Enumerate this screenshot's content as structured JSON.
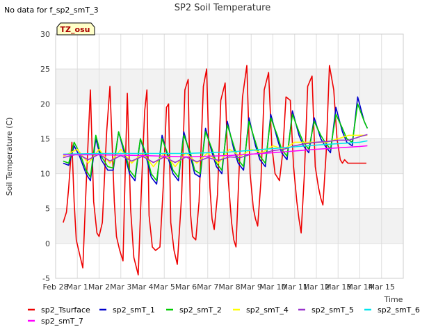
{
  "chart_data": {
    "type": "line",
    "title": "SP2 Soil Temperature",
    "note": "No data for f_sp2_smT_3",
    "badge": "TZ_osu",
    "xlabel": "Time",
    "ylabel": "Soil Temperature (C)",
    "ylim": [
      -5,
      30
    ],
    "xlim": [
      0,
      16
    ],
    "yticks": [
      -5,
      0,
      5,
      10,
      15,
      20,
      25,
      30
    ],
    "xticks": [
      {
        "label": "Feb 28",
        "value": 0
      },
      {
        "label": "Mar 1",
        "value": 1
      },
      {
        "label": "Mar 2",
        "value": 2
      },
      {
        "label": "Mar 3",
        "value": 3
      },
      {
        "label": "Mar 4",
        "value": 4
      },
      {
        "label": "Mar 5",
        "value": 5
      },
      {
        "label": "Mar 6",
        "value": 6
      },
      {
        "label": "Mar 7",
        "value": 7
      },
      {
        "label": "Mar 8",
        "value": 8
      },
      {
        "label": "Mar 9",
        "value": 9
      },
      {
        "label": "Mar 10",
        "value": 10
      },
      {
        "label": "Mar 11",
        "value": 11
      },
      {
        "label": "Mar 12",
        "value": 12
      },
      {
        "label": "Mar 13",
        "value": 13
      },
      {
        "label": "Mar 14",
        "value": 14
      },
      {
        "label": "Mar 15",
        "value": 15
      }
    ],
    "grid": true,
    "legend_position": "bottom",
    "series": [
      {
        "name": "sp2_Tsurface",
        "color": "#ee0000",
        "x": [
          0.35,
          0.5,
          0.6,
          0.75,
          0.85,
          0.95,
          1.1,
          1.25,
          1.4,
          1.5,
          1.6,
          1.75,
          1.9,
          2.0,
          2.15,
          2.35,
          2.5,
          2.7,
          2.8,
          2.95,
          3.1,
          3.2,
          3.3,
          3.45,
          3.6,
          3.8,
          3.95,
          4.1,
          4.2,
          4.3,
          4.45,
          4.6,
          4.8,
          4.95,
          5.1,
          5.2,
          5.3,
          5.45,
          5.6,
          5.8,
          5.95,
          6.1,
          6.2,
          6.3,
          6.45,
          6.6,
          6.8,
          6.95,
          7.1,
          7.2,
          7.3,
          7.45,
          7.6,
          7.8,
          7.95,
          8.1,
          8.2,
          8.3,
          8.45,
          8.6,
          8.8,
          8.95,
          9.1,
          9.2,
          9.3,
          9.45,
          9.6,
          9.8,
          9.95,
          10.1,
          10.2,
          10.3,
          10.45,
          10.6,
          10.8,
          10.95,
          11.1,
          11.2,
          11.3,
          11.45,
          11.6,
          11.8,
          11.95,
          12.1,
          12.2,
          12.3,
          12.45,
          12.6,
          12.8,
          12.95,
          13.1,
          13.2,
          13.3,
          13.45,
          13.6,
          13.8,
          13.95,
          14.1,
          14.2,
          14.3
        ],
        "y": [
          3.0,
          4.5,
          8.0,
          14.5,
          6.0,
          0.5,
          -1.5,
          -3.5,
          8.0,
          15.0,
          22.0,
          6.0,
          1.5,
          1.0,
          3.0,
          16.0,
          22.5,
          6.0,
          1.0,
          -1.0,
          -2.5,
          10.0,
          21.5,
          5.0,
          -2.0,
          -4.5,
          8.0,
          19.0,
          22.0,
          4.0,
          -0.5,
          -1.0,
          -0.5,
          8.0,
          19.5,
          20.0,
          3.0,
          -1.0,
          -3.0,
          7.0,
          22.0,
          23.5,
          4.5,
          1.0,
          0.5,
          6.0,
          22.5,
          25.0,
          8.0,
          3.5,
          2.0,
          7.0,
          20.5,
          23.0,
          9.0,
          3.0,
          0.5,
          -0.5,
          11.0,
          21.0,
          25.5,
          10.0,
          5.0,
          3.5,
          2.5,
          9.0,
          22.0,
          24.5,
          14.0,
          10.0,
          9.5,
          9.0,
          13.0,
          21.0,
          20.5,
          11.0,
          6.0,
          3.5,
          1.5,
          10.0,
          22.5,
          24.0,
          11.0,
          8.0,
          6.5,
          5.5,
          13.0,
          25.5,
          22.0,
          15.0,
          12.0,
          11.5,
          12.0,
          11.5,
          11.5,
          11.5,
          11.5,
          11.5,
          11.5,
          11.5
        ]
      },
      {
        "name": "sp2_smT_1",
        "color": "#0000cc",
        "x": [
          0.35,
          0.6,
          0.85,
          1.1,
          1.4,
          1.6,
          1.85,
          2.1,
          2.4,
          2.65,
          2.9,
          3.2,
          3.4,
          3.65,
          3.9,
          4.2,
          4.4,
          4.65,
          4.9,
          5.2,
          5.4,
          5.65,
          5.9,
          6.2,
          6.4,
          6.65,
          6.9,
          7.2,
          7.4,
          7.65,
          7.9,
          8.2,
          8.4,
          8.65,
          8.9,
          9.2,
          9.4,
          9.65,
          9.9,
          10.2,
          10.4,
          10.65,
          10.9,
          11.2,
          11.4,
          11.65,
          11.9,
          12.2,
          12.4,
          12.65,
          12.9,
          13.2,
          13.4,
          13.65,
          13.9,
          14.2,
          14.35
        ],
        "y": [
          11.5,
          11.2,
          14.0,
          12.5,
          10.0,
          9.0,
          15.0,
          12.0,
          10.5,
          10.5,
          16.0,
          12.5,
          10.0,
          9.0,
          15.0,
          12.0,
          9.5,
          8.5,
          15.5,
          12.0,
          10.0,
          9.0,
          16.0,
          12.5,
          10.0,
          9.5,
          16.5,
          13.0,
          11.0,
          10.0,
          17.5,
          13.5,
          11.5,
          10.5,
          18.0,
          14.0,
          12.0,
          11.0,
          18.5,
          15.0,
          13.0,
          12.0,
          19.0,
          15.5,
          14.0,
          13.0,
          18.0,
          15.0,
          14.0,
          13.0,
          19.5,
          16.0,
          14.5,
          14.0,
          21.0,
          17.5,
          16.5
        ]
      },
      {
        "name": "sp2_smT_2",
        "color": "#00cc00",
        "x": [
          0.35,
          0.6,
          0.85,
          1.1,
          1.4,
          1.6,
          1.85,
          2.1,
          2.4,
          2.65,
          2.9,
          3.2,
          3.4,
          3.65,
          3.9,
          4.2,
          4.4,
          4.65,
          4.9,
          5.2,
          5.4,
          5.65,
          5.9,
          6.2,
          6.4,
          6.65,
          6.9,
          7.2,
          7.4,
          7.65,
          7.9,
          8.2,
          8.4,
          8.65,
          8.9,
          9.2,
          9.4,
          9.65,
          9.9,
          10.2,
          10.4,
          10.65,
          10.9,
          11.2,
          11.4,
          11.65,
          11.9,
          12.2,
          12.4,
          12.65,
          12.9,
          13.2,
          13.4,
          13.65,
          13.9,
          14.2,
          14.35
        ],
        "y": [
          11.8,
          11.5,
          14.5,
          13.0,
          10.5,
          9.5,
          15.5,
          12.5,
          11.0,
          10.8,
          16.0,
          13.0,
          10.5,
          9.5,
          15.0,
          12.5,
          10.0,
          9.0,
          15.0,
          12.5,
          10.5,
          9.5,
          15.5,
          13.0,
          10.5,
          10.0,
          16.0,
          13.5,
          11.5,
          10.5,
          17.0,
          14.0,
          12.0,
          11.0,
          17.5,
          14.5,
          12.5,
          11.5,
          18.0,
          15.5,
          13.5,
          12.5,
          18.5,
          16.0,
          14.5,
          13.5,
          17.5,
          15.5,
          14.5,
          13.5,
          18.5,
          16.5,
          15.0,
          14.5,
          20.0,
          17.5,
          16.5
        ]
      },
      {
        "name": "sp2_smT_4",
        "color": "#ffff00",
        "x": [
          0.35,
          1.0,
          1.5,
          2.0,
          2.5,
          3.0,
          3.5,
          4.0,
          4.5,
          5.0,
          5.5,
          6.0,
          6.5,
          7.0,
          7.5,
          8.0,
          8.5,
          9.0,
          9.5,
          10.0,
          10.5,
          11.0,
          11.5,
          12.0,
          12.5,
          13.0,
          13.5,
          14.0,
          14.35
        ],
        "y": [
          12.5,
          13.5,
          11.5,
          13.5,
          11.5,
          13.5,
          11.5,
          13.0,
          11.0,
          13.0,
          11.0,
          13.0,
          11.5,
          13.0,
          11.5,
          13.5,
          12.5,
          13.5,
          13.0,
          14.0,
          13.5,
          14.5,
          14.5,
          14.5,
          14.5,
          15.0,
          15.5,
          15.5,
          15.5
        ]
      },
      {
        "name": "sp2_smT_5",
        "color": "#9933cc",
        "x": [
          0.35,
          1.0,
          1.5,
          2.0,
          2.5,
          3.0,
          3.5,
          4.0,
          4.5,
          5.0,
          5.5,
          6.0,
          6.5,
          7.0,
          7.5,
          8.0,
          8.5,
          9.0,
          9.5,
          10.0,
          10.5,
          11.0,
          11.5,
          12.0,
          12.5,
          13.0,
          13.5,
          14.0,
          14.35
        ],
        "y": [
          12.3,
          12.8,
          12.0,
          12.8,
          11.8,
          12.6,
          11.8,
          12.5,
          11.6,
          12.4,
          11.6,
          12.4,
          11.7,
          12.3,
          11.9,
          12.4,
          12.3,
          12.8,
          12.9,
          13.3,
          13.5,
          14.0,
          14.3,
          14.5,
          14.6,
          14.8,
          14.8,
          15.3,
          15.6
        ]
      },
      {
        "name": "sp2_smT_6",
        "color": "#00e5ee",
        "x": [
          0.35,
          2.0,
          4.0,
          6.0,
          8.0,
          10.0,
          12.0,
          13.0,
          14.0,
          14.35
        ],
        "y": [
          12.8,
          12.9,
          12.9,
          12.9,
          13.1,
          13.6,
          14.1,
          14.3,
          14.5,
          14.7
        ]
      },
      {
        "name": "sp2_smT_7",
        "color": "#ff00ff",
        "x": [
          0.35,
          2.0,
          4.0,
          6.0,
          8.0,
          10.0,
          12.0,
          13.0,
          14.0,
          14.35
        ],
        "y": [
          12.7,
          12.7,
          12.6,
          12.4,
          12.6,
          13.0,
          13.5,
          13.7,
          13.9,
          14.0
        ]
      }
    ]
  }
}
